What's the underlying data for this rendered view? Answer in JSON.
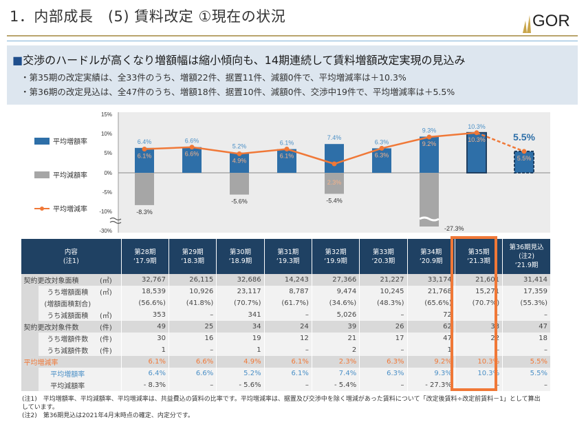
{
  "header": {
    "title": "1．内部成長　(5) 賃料改定 ①現在の状況",
    "logo_text": "GOR"
  },
  "summary": {
    "headline": "交渉のハードルが高くなり増額幅は縮小傾向も、14期連続して賃料増額改定実現の見込み",
    "bullets": [
      "・第35期の改定実績は、全33件のうち、増額22件、据置11件、減額0件で、平均増減率は＋10.3%",
      "・第36期の改定見込は、全47件のうち、増額18件、据置10件、減額0件、交渉中19件で、平均増減率は＋5.5%"
    ]
  },
  "chart_data": {
    "type": "bar",
    "categories": [
      "第28期",
      "第29期",
      "第30期",
      "第31期",
      "第32期",
      "第33期",
      "第34期",
      "第35期",
      "第36期見込"
    ],
    "y_ticks": [
      "15%",
      "10%",
      "5%",
      "0%",
      "-5%",
      "-10%",
      "-30%"
    ],
    "axis_break": "between -10% and -30%",
    "legend_placement": "left",
    "series": [
      {
        "name": "平均増額率",
        "type": "bar",
        "color": "#2e6fa8",
        "values": [
          6.4,
          6.6,
          5.2,
          6.1,
          7.4,
          6.3,
          9.3,
          10.3,
          5.5
        ],
        "labels": [
          "6.4%",
          "6.6%",
          "5.2%",
          "6.1%",
          "7.4%",
          "6.3%",
          "9.3%",
          "10.3%",
          "5.5%"
        ]
      },
      {
        "name": "平均減額率",
        "type": "bar",
        "color": "#a6a6a6",
        "values": [
          -8.3,
          null,
          -5.6,
          null,
          -5.4,
          null,
          -27.3,
          null,
          null
        ],
        "labels": [
          "-8.3%",
          "",
          "-5.6%",
          "",
          "-5.4%",
          "",
          "-27.3%",
          "",
          ""
        ]
      },
      {
        "name": "平均増減率",
        "type": "line",
        "color": "#f07837",
        "values": [
          6.1,
          6.6,
          4.9,
          6.1,
          2.3,
          6.3,
          9.2,
          10.3,
          5.5
        ],
        "labels": [
          "6.1%",
          "6.6%",
          "4.9%",
          "6.1%",
          "2.3%",
          "6.3%",
          "9.2%",
          "10.3%",
          "5.5%"
        ]
      }
    ],
    "forecast_label": "5.5%",
    "grid": false
  },
  "table": {
    "header_label": [
      "内容",
      "(注1)"
    ],
    "columns": [
      [
        "第28期",
        "‘17.9期"
      ],
      [
        "第29期",
        "‘18.3期"
      ],
      [
        "第30期",
        "‘18.9期"
      ],
      [
        "第31期",
        "‘19.3期"
      ],
      [
        "第32期",
        "‘19.9期"
      ],
      [
        "第33期",
        "‘20.3期"
      ],
      [
        "第34期",
        "‘20.9期"
      ],
      [
        "第35期",
        "‘21.3期"
      ],
      [
        "第36期見込",
        "(注2)",
        "‘21.9期"
      ]
    ],
    "rows": [
      {
        "label": "契約更改対象面積",
        "unit": "(㎡)",
        "type": "major",
        "values": [
          "32,767",
          "26,115",
          "32,686",
          "14,243",
          "27,366",
          "21,227",
          "33,174",
          "21,601",
          "31,414"
        ]
      },
      {
        "label": "うち増額面積",
        "unit": "(㎡)",
        "type": "sub",
        "values": [
          "18,539",
          "10,926",
          "23,117",
          "8,787",
          "9,474",
          "10,245",
          "21,768",
          "15,271",
          "17,359"
        ]
      },
      {
        "label": "(増額面積割合)",
        "unit": "",
        "type": "sub",
        "values": [
          "(56.6%)",
          "(41.8%)",
          "(70.7%)",
          "(61.7%)",
          "(34.6%)",
          "(48.3%)",
          "(65.6%)",
          "(70.7%)",
          "(55.3%)"
        ]
      },
      {
        "label": "うち減額面積",
        "unit": "(㎡)",
        "type": "sub",
        "values": [
          "353",
          "–",
          "341",
          "–",
          "5,026",
          "–",
          "72",
          "–",
          "–"
        ]
      },
      {
        "label": "契約更改対象件数",
        "unit": "(件)",
        "type": "major",
        "values": [
          "49",
          "25",
          "34",
          "24",
          "39",
          "26",
          "62",
          "33",
          "47"
        ]
      },
      {
        "label": "うち増額件数",
        "unit": "(件)",
        "type": "sub",
        "values": [
          "30",
          "16",
          "19",
          "12",
          "21",
          "17",
          "47",
          "22",
          "18"
        ]
      },
      {
        "label": "うち減額件数",
        "unit": "(件)",
        "type": "sub",
        "values": [
          "1",
          "–",
          "1",
          "–",
          "2",
          "–",
          "1",
          "–",
          "–"
        ]
      },
      {
        "label": "平均増減率",
        "unit": "",
        "type": "orange",
        "values": [
          "6.1%",
          "6.6%",
          "4.9%",
          "6.1%",
          "2.3%",
          "6.3%",
          "9.2%",
          "10.3%",
          "5.5%"
        ]
      },
      {
        "label": "平均増額率",
        "unit": "",
        "type": "blue",
        "values": [
          "6.4%",
          "6.6%",
          "5.2%",
          "6.1%",
          "7.4%",
          "6.3%",
          "9.3%",
          "10.3%",
          "5.5%"
        ]
      },
      {
        "label": "平均減額率",
        "unit": "",
        "type": "sub",
        "values": [
          "- 8.3%",
          "–",
          "- 5.6%",
          "–",
          "- 5.4%",
          "–",
          "- 27.3%",
          "–",
          "–"
        ]
      }
    ]
  },
  "notes": [
    "(注1)　平均増額率、平均減額率、平均増減率は、共益費込の賃料の比率です。平均増減率は、据置及び交渉中を除く増減があった賃料について「改定後賃料÷改定前賃料－1」として算出　　　　　しています。",
    "(注2)　第36期見込は2021年4月末時点の確定、内定分です。"
  ],
  "colors": {
    "accent": "#f07837",
    "header_bg": "#1f4163",
    "bar_blue": "#2e6fa8",
    "bar_grey": "#a6a6a6"
  }
}
